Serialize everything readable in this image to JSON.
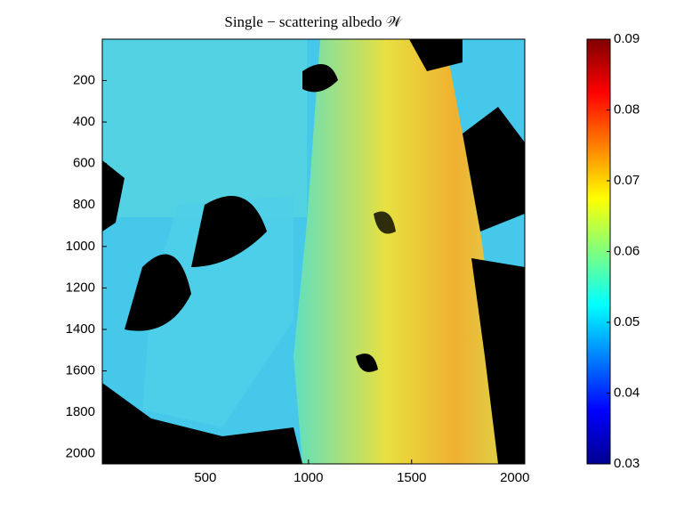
{
  "chart_data": {
    "type": "heatmap",
    "title": "Single − scattering albedo 𝒲",
    "xlim": [
      0.5,
      2048.5
    ],
    "xticks": [
      500,
      1000,
      1500,
      2000
    ],
    "ylim": [
      0.5,
      2048.5
    ],
    "yticks": [
      200,
      400,
      600,
      800,
      1000,
      1200,
      1400,
      1600,
      1800,
      2000
    ],
    "y_reversed": true,
    "colormap": "jet",
    "colorbar": {
      "lim": [
        0.03,
        0.09
      ],
      "ticks": [
        0.03,
        0.04,
        0.05,
        0.06,
        0.07,
        0.08,
        0.09
      ]
    }
  }
}
